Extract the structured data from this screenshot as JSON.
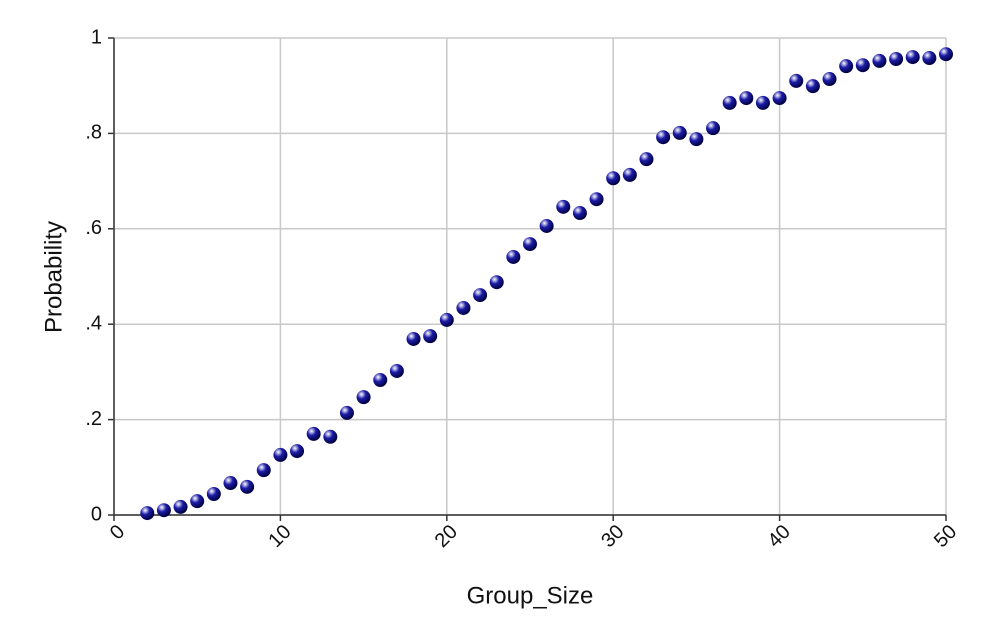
{
  "chart_data": {
    "type": "scatter",
    "x_label": "Group_Size",
    "y_label": "Probability",
    "x": [
      2,
      3,
      4,
      5,
      6,
      7,
      8,
      9,
      10,
      11,
      12,
      13,
      14,
      15,
      16,
      17,
      18,
      19,
      20,
      21,
      22,
      23,
      24,
      25,
      26,
      27,
      28,
      29,
      30,
      31,
      32,
      33,
      34,
      35,
      36,
      37,
      38,
      39,
      40,
      41,
      42,
      43,
      44,
      45,
      46,
      47,
      48,
      49,
      50
    ],
    "values": [
      0.004,
      0.01,
      0.017,
      0.029,
      0.044,
      0.067,
      0.059,
      0.094,
      0.126,
      0.134,
      0.17,
      0.164,
      0.214,
      0.247,
      0.283,
      0.302,
      0.369,
      0.375,
      0.409,
      0.434,
      0.461,
      0.488,
      0.541,
      0.568,
      0.606,
      0.646,
      0.633,
      0.662,
      0.706,
      0.713,
      0.746,
      0.792,
      0.801,
      0.788,
      0.811,
      0.864,
      0.874,
      0.864,
      0.874,
      0.91,
      0.899,
      0.914,
      0.941,
      0.943,
      0.952,
      0.956,
      0.96,
      0.958,
      0.966
    ],
    "color": "#1c1ca8",
    "xlim": [
      0,
      50
    ],
    "xticks": [
      0,
      10,
      20,
      30,
      40,
      50
    ],
    "ylim": [
      0,
      1
    ],
    "yticks": [
      0,
      {
        "value": 0.2,
        "label": ".2"
      },
      {
        "value": 0.4,
        "label": ".4"
      },
      {
        "value": 0.6,
        "label": ".6"
      },
      {
        "value": 0.8,
        "label": ".8"
      },
      1
    ],
    "grid": true
  }
}
